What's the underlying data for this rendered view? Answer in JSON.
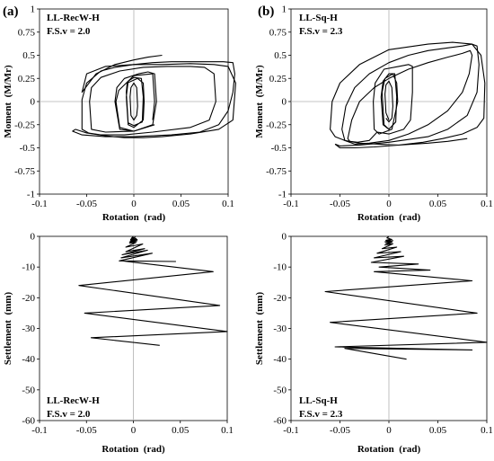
{
  "panel_tags": [
    "(a)",
    "(b)"
  ],
  "chart_data": [
    {
      "type": "line",
      "panel_label": "(a)",
      "annotation_lines": [
        "LL-RecW-H",
        "F.S.v = 2.0"
      ],
      "xlabel": "Rotation  (rad)",
      "ylabel": "Moment  (M/Mr)",
      "xlim": [
        -0.1,
        0.1
      ],
      "ylim": [
        -1,
        1
      ],
      "x_ticks": [
        -0.1,
        -0.05,
        0,
        0.05,
        0.1
      ],
      "x_tick_labels": [
        "-0.1",
        "-0.05",
        "0",
        "0.05",
        "0.1"
      ],
      "y_ticks": [
        1,
        0.75,
        0.5,
        0.25,
        0,
        -0.25,
        -0.5,
        -0.75,
        -1
      ],
      "y_tick_labels": [
        "1",
        "0.75",
        "0.5",
        "0.25",
        "0",
        "-0.25",
        "-0.5",
        "-0.75",
        "-1"
      ],
      "grid": false,
      "series": [
        {
          "x": [
            0,
            -0.003,
            -0.004,
            -0.003,
            0,
            0.003,
            0.004,
            0.003,
            0,
            -0.003
          ],
          "y": [
            -0.2,
            -0.15,
            0.05,
            0.15,
            0.2,
            0.15,
            -0.05,
            -0.15,
            -0.2,
            -0.15
          ]
        },
        {
          "x": [
            0,
            -0.006,
            -0.008,
            -0.006,
            0,
            0.008,
            0.01,
            0.009,
            0,
            -0.006,
            -0.008,
            -0.007,
            0.004,
            0.01,
            0.011,
            0.01,
            0
          ],
          "y": [
            -0.28,
            -0.25,
            0.05,
            0.22,
            0.26,
            0.25,
            0.05,
            -0.22,
            -0.26,
            -0.23,
            0.1,
            0.2,
            0.25,
            0.2,
            0,
            -0.2,
            -0.28
          ]
        },
        {
          "x": [
            0,
            -0.015,
            -0.02,
            -0.018,
            -0.01,
            0.005,
            0.015,
            0.022,
            0.024,
            0.02,
            0,
            -0.015,
            -0.019,
            -0.016,
            0,
            0.02,
            0.022,
            0.02
          ],
          "y": [
            -0.32,
            -0.3,
            0,
            0.15,
            0.25,
            0.3,
            0.32,
            0.3,
            0,
            -0.25,
            -0.32,
            -0.28,
            0,
            0.12,
            0.28,
            0.3,
            0,
            -0.2
          ]
        },
        {
          "x": [
            0.022,
            0.0,
            -0.03,
            -0.045,
            -0.047,
            -0.045,
            -0.035,
            -0.015,
            0.01,
            0.035,
            0.06,
            0.075,
            0.085,
            0.087,
            0.08,
            0.06,
            0.02,
            -0.01,
            -0.035,
            -0.048
          ],
          "y": [
            -0.25,
            -0.32,
            -0.33,
            -0.3,
            0,
            0.15,
            0.26,
            0.33,
            0.37,
            0.38,
            0.38,
            0.37,
            0.3,
            0,
            -0.2,
            -0.28,
            -0.33,
            -0.36,
            -0.36,
            -0.34
          ]
        },
        {
          "x": [
            -0.048,
            -0.055,
            -0.055,
            -0.05,
            -0.035,
            -0.02,
            0.0,
            0.02,
            0.04,
            0.07,
            0.095,
            0.105,
            0.107,
            0.105,
            0.1,
            0.09,
            0.07,
            0.04,
            0.0,
            -0.03,
            -0.055,
            -0.065,
            -0.062
          ],
          "y": [
            -0.34,
            -0.3,
            0.02,
            0.2,
            0.33,
            0.37,
            0.4,
            0.42,
            0.43,
            0.43,
            0.43,
            0.42,
            0.3,
            0.1,
            -0.1,
            -0.25,
            -0.33,
            -0.36,
            -0.38,
            -0.38,
            -0.36,
            -0.32,
            -0.3
          ]
        },
        {
          "x": [
            -0.062,
            -0.05,
            -0.03,
            -0.01,
            0.01,
            0.03,
            0.06,
            0.09,
            0.105,
            0.108,
            0.1,
            0.085,
            0.06,
            0.03,
            0.0,
            -0.03,
            -0.05,
            -0.055,
            -0.04,
            -0.02,
            0.0,
            0.015,
            0.03
          ],
          "y": [
            -0.3,
            -0.34,
            -0.37,
            -0.39,
            -0.39,
            -0.38,
            -0.35,
            -0.3,
            -0.2,
            0.2,
            0.38,
            0.4,
            0.41,
            0.4,
            0.4,
            0.38,
            0.3,
            0.1,
            0.3,
            0.4,
            0.45,
            0.48,
            0.5
          ]
        }
      ]
    },
    {
      "type": "line",
      "panel_label": "(b)",
      "annotation_lines": [
        "LL-Sq-H",
        "F.S.v = 2.3"
      ],
      "xlabel": "Rotation  (rad)",
      "ylabel": "Moment  (M/Mr)",
      "xlim": [
        -0.1,
        0.1
      ],
      "ylim": [
        -1,
        1
      ],
      "x_ticks": [
        -0.1,
        -0.05,
        0,
        0.05,
        0.1
      ],
      "x_tick_labels": [
        "-0.1",
        "-0.05",
        "0",
        "0.05",
        "0.1"
      ],
      "y_ticks": [
        1,
        0.75,
        0.5,
        0.25,
        0,
        -0.25,
        -0.5,
        -0.75,
        -1
      ],
      "y_tick_labels": [
        "1",
        "0.75",
        "0.5",
        "0.25",
        "0",
        "-0.25",
        "-0.5",
        "-0.75",
        "-1"
      ],
      "grid": false,
      "series": [
        {
          "x": [
            0,
            -0.003,
            -0.004,
            -0.003,
            0,
            0.003,
            0.004,
            0.003,
            0,
            -0.003
          ],
          "y": [
            -0.2,
            -0.12,
            0.08,
            0.18,
            0.22,
            0.15,
            -0.05,
            -0.18,
            -0.22,
            -0.18
          ]
        },
        {
          "x": [
            0,
            -0.006,
            -0.008,
            -0.006,
            0.0,
            0.006,
            0.008,
            0.007,
            0,
            -0.005,
            -0.007,
            -0.004,
            0.004,
            0.008,
            0.009
          ],
          "y": [
            -0.3,
            -0.25,
            0.05,
            0.22,
            0.3,
            0.3,
            0.05,
            -0.22,
            -0.3,
            -0.25,
            0.1,
            0.25,
            0.3,
            0.2,
            0
          ]
        },
        {
          "x": [
            0.009,
            0.003,
            -0.01,
            -0.015,
            -0.016,
            -0.014,
            -0.005,
            0.01,
            0.02,
            0.024,
            0.024,
            0.022,
            0.015,
            0.0,
            -0.012
          ],
          "y": [
            0,
            -0.3,
            -0.35,
            -0.3,
            0,
            0.2,
            0.35,
            0.38,
            0.4,
            0.38,
            0.1,
            -0.2,
            -0.3,
            -0.35,
            -0.33
          ]
        },
        {
          "x": [
            -0.012,
            -0.02,
            -0.032,
            -0.04,
            -0.042,
            -0.038,
            -0.03,
            -0.015,
            0.0,
            0.02,
            0.04,
            0.06,
            0.075,
            0.083,
            0.085,
            0.082,
            0.075,
            0.06,
            0.04,
            0.02,
            0.0,
            -0.02,
            -0.035
          ],
          "y": [
            -0.33,
            -0.42,
            -0.44,
            -0.43,
            -0.4,
            -0.2,
            0.0,
            0.15,
            0.25,
            0.35,
            0.42,
            0.48,
            0.52,
            0.55,
            0.5,
            0.3,
            0.1,
            -0.1,
            -0.25,
            -0.35,
            -0.42,
            -0.45,
            -0.46
          ]
        },
        {
          "x": [
            -0.035,
            -0.045,
            -0.048,
            -0.044,
            -0.035,
            -0.02,
            0.0,
            0.02,
            0.04,
            0.06,
            0.075,
            0.085,
            0.09,
            0.092,
            0.09,
            0.08,
            0.06,
            0.04,
            0.0,
            -0.03,
            -0.05,
            -0.055
          ],
          "y": [
            -0.46,
            -0.42,
            -0.3,
            -0.05,
            0.15,
            0.3,
            0.42,
            0.5,
            0.55,
            0.58,
            0.6,
            0.62,
            0.6,
            0.4,
            0.1,
            -0.15,
            -0.3,
            -0.38,
            -0.44,
            -0.47,
            -0.48,
            -0.46
          ]
        },
        {
          "x": [
            -0.055,
            -0.05,
            -0.035,
            -0.015,
            0.01,
            0.035,
            0.055,
            0.075,
            0.09,
            0.097,
            0.098,
            0.094,
            0.085,
            0.065,
            0.04,
            0.0,
            -0.03,
            -0.05,
            -0.058,
            -0.06,
            -0.055,
            -0.045,
            -0.03,
            -0.01,
            0.01,
            0.04,
            0.06,
            0.08
          ],
          "y": [
            -0.46,
            -0.5,
            -0.5,
            -0.49,
            -0.47,
            -0.44,
            -0.4,
            -0.35,
            -0.28,
            -0.18,
            0.2,
            0.5,
            0.62,
            0.64,
            0.62,
            0.56,
            0.4,
            0.2,
            0.0,
            -0.3,
            -0.38,
            -0.42,
            -0.45,
            -0.46,
            -0.47,
            -0.45,
            -0.43,
            -0.4
          ]
        }
      ]
    },
    {
      "type": "line",
      "annotation_lines": [
        "LL-RecW-H",
        "F.S.v = 2.0"
      ],
      "xlabel": "Rotation  (rad)",
      "ylabel": "Settlement  (mm)",
      "xlim": [
        -0.1,
        0.1
      ],
      "ylim": [
        -60,
        0
      ],
      "x_ticks": [
        -0.1,
        -0.05,
        0,
        0.05,
        0.1
      ],
      "x_tick_labels": [
        "-0.1",
        "-0.05",
        "0",
        "0.05",
        "0.1"
      ],
      "y_ticks": [
        0,
        -10,
        -20,
        -30,
        -40,
        -50,
        -60
      ],
      "y_tick_labels": [
        "0",
        "-10",
        "-20",
        "-30",
        "-40",
        "-50",
        "-60"
      ],
      "grid": false,
      "series": [
        {
          "x": [
            0,
            -0.002,
            0.002,
            -0.003,
            0.003,
            -0.003,
            0.004,
            -0.004,
            0.004,
            -0.004,
            0.003,
            -0.008,
            0.01,
            -0.008,
            0.012,
            -0.012,
            0.015,
            -0.013,
            0.02,
            -0.015,
            0.045,
            -0.012,
            0.085,
            -0.058,
            0.092,
            -0.052,
            0.1,
            -0.045,
            0.028
          ],
          "y": [
            0,
            -0.6,
            -0.3,
            -1.0,
            -0.7,
            -1.4,
            -1.0,
            -1.8,
            -1.4,
            -2.2,
            -2.0,
            -3.5,
            -2.5,
            -5.0,
            -4.0,
            -6.0,
            -4.5,
            -7.0,
            -5.5,
            -8.0,
            -8.2,
            -8.0,
            -11.5,
            -16.0,
            -22.5,
            -25.0,
            -31.0,
            -33.0,
            -35.5
          ]
        }
      ]
    },
    {
      "type": "line",
      "annotation_lines": [
        "LL-Sq-H",
        "F.S.v = 2.3"
      ],
      "xlabel": "Rotation  (rad)",
      "ylabel": "Settlement  (mm)",
      "xlim": [
        -0.1,
        0.1
      ],
      "ylim": [
        -60,
        0
      ],
      "x_ticks": [
        -0.1,
        -0.05,
        0,
        0.05,
        0.1
      ],
      "x_tick_labels": [
        "-0.1",
        "-0.05",
        "0",
        "0.05",
        "0.1"
      ],
      "y_ticks": [
        0,
        -10,
        -20,
        -30,
        -40,
        -50,
        -60
      ],
      "y_tick_labels": [
        "0",
        "-10",
        "-20",
        "-30",
        "-40",
        "-50",
        "-60"
      ],
      "grid": false,
      "series": [
        {
          "x": [
            0,
            -0.002,
            0.002,
            -0.003,
            0.003,
            -0.004,
            0.004,
            -0.003,
            0.003,
            -0.004,
            0.004,
            -0.007,
            0.008,
            -0.012,
            0.012,
            -0.015,
            0.015,
            -0.018,
            0.03,
            -0.01,
            0.042,
            -0.015,
            0.085,
            -0.065,
            0.09,
            -0.06,
            0.1,
            -0.055,
            0.085,
            -0.045,
            0.018
          ],
          "y": [
            0,
            -0.5,
            -0.9,
            -1.3,
            -1.0,
            -1.8,
            -1.4,
            -2.2,
            -1.9,
            -2.8,
            -2.4,
            -4.0,
            -3.5,
            -5.5,
            -5.0,
            -7.0,
            -6.5,
            -8.5,
            -9.0,
            -10.0,
            -11.0,
            -11.5,
            -14.5,
            -18.0,
            -25.0,
            -28.0,
            -34.5,
            -36.0,
            -37.0,
            -36.5,
            -40.0
          ]
        }
      ]
    }
  ]
}
